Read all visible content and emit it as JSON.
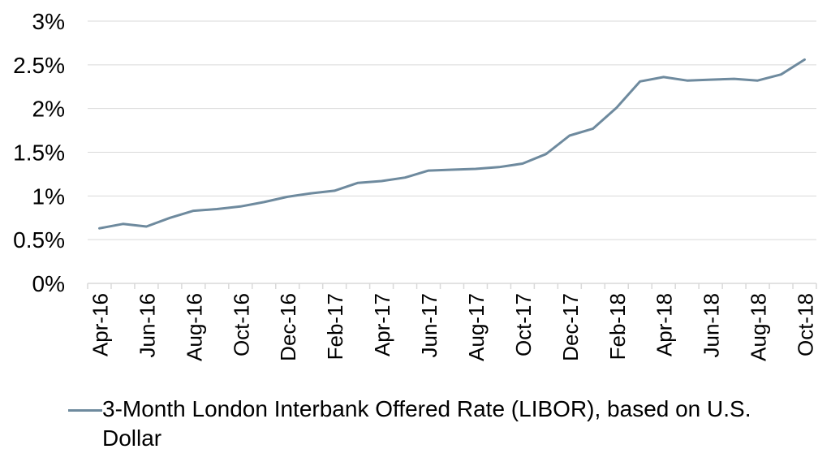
{
  "chart_data": {
    "type": "line",
    "title": "",
    "xlabel": "",
    "ylabel": "",
    "ylim": [
      0,
      3
    ],
    "y_ticks": [
      "0%",
      "0.5%",
      "1%",
      "1.5%",
      "2%",
      "2.5%",
      "3%"
    ],
    "y_tick_values": [
      0,
      0.5,
      1,
      1.5,
      2,
      2.5,
      3
    ],
    "x_tick_labels": [
      "Apr-16",
      "Jun-16",
      "Aug-16",
      "Oct-16",
      "Dec-16",
      "Feb-17",
      "Apr-17",
      "Jun-17",
      "Aug-17",
      "Oct-17",
      "Dec-17",
      "Feb-18",
      "Apr-18",
      "Jun-18",
      "Aug-18",
      "Oct-18"
    ],
    "grid": "horizontal",
    "legend_position": "bottom",
    "series": [
      {
        "name": "3-Month London Interbank Offered Rate (LIBOR), based on U.S. Dollar",
        "color": "#6E8A9E",
        "x": [
          "Apr-16",
          "May-16",
          "Jun-16",
          "Jul-16",
          "Aug-16",
          "Sep-16",
          "Oct-16",
          "Nov-16",
          "Dec-16",
          "Jan-17",
          "Feb-17",
          "Mar-17",
          "Apr-17",
          "May-17",
          "Jun-17",
          "Jul-17",
          "Aug-17",
          "Sep-17",
          "Oct-17",
          "Nov-17",
          "Dec-17",
          "Jan-18",
          "Feb-18",
          "Mar-18",
          "Apr-18",
          "May-18",
          "Jun-18",
          "Jul-18",
          "Aug-18",
          "Sep-18",
          "Oct-18"
        ],
        "values": [
          0.63,
          0.68,
          0.65,
          0.75,
          0.83,
          0.85,
          0.88,
          0.93,
          0.99,
          1.03,
          1.06,
          1.15,
          1.17,
          1.21,
          1.29,
          1.3,
          1.31,
          1.33,
          1.37,
          1.48,
          1.69,
          1.77,
          2.01,
          2.31,
          2.36,
          2.32,
          2.33,
          2.34,
          2.32,
          2.39,
          2.56
        ]
      }
    ]
  },
  "legend": {
    "label": "3-Month London Interbank Offered Rate (LIBOR), based on U.S. Dollar"
  }
}
